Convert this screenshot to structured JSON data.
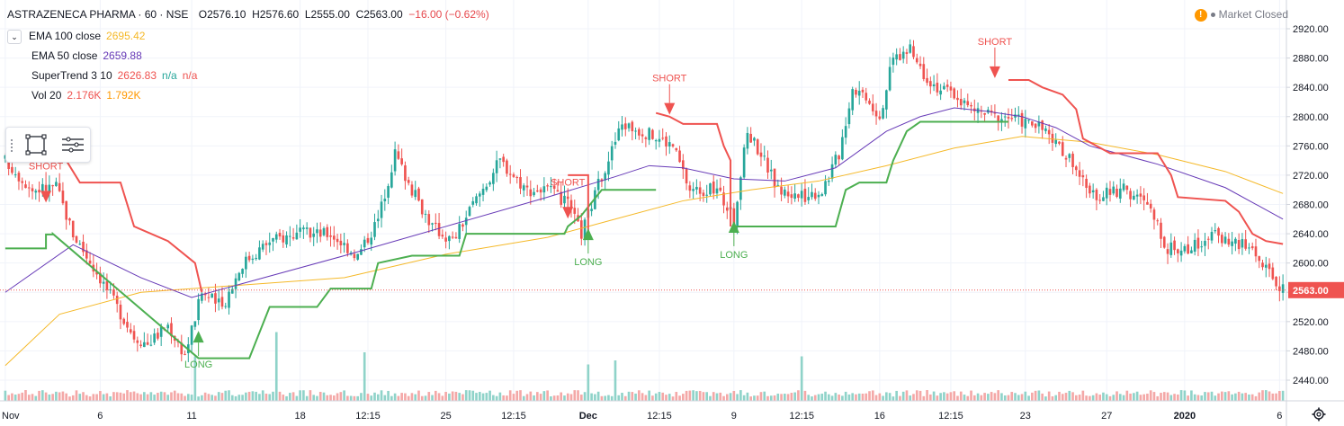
{
  "header": {
    "symbol": "ASTRAZENECA PHARMA · 60 · NSE",
    "open": "O2576.10",
    "high": "H2576.60",
    "low": "L2555.00",
    "close": "C2563.00",
    "change": "−16.00 (−0.62%)"
  },
  "market_status": "Market Closed",
  "legend": [
    {
      "name": "EMA 100 close",
      "value": "2695.42",
      "color": "#f5b929"
    },
    {
      "name": "EMA 50 close",
      "value": "2659.88",
      "color": "#673ab7"
    },
    {
      "name": "SuperTrend 3 10",
      "value": "2626.83",
      "extra1": "n/a",
      "extra2": "n/a",
      "color": "#ef5350",
      "color1": "#26a69a",
      "color2": "#ef5350"
    },
    {
      "name": "Vol 20",
      "value": "2.176K",
      "extra1": "1.792K",
      "color": "#ef5350",
      "color1": "#ff9800"
    }
  ],
  "icons": {
    "collapse": "chevron-down-icon",
    "rect": "rectangle-icon",
    "menu": "hamburger-icon",
    "settings": "gear-icon",
    "warning": "warning-icon"
  },
  "chart_data": {
    "type": "candlestick",
    "ylim": [
      2420,
      2940
    ],
    "y_ticks": [
      2440,
      2480,
      2520,
      2560,
      2600,
      2640,
      2680,
      2720,
      2760,
      2800,
      2840,
      2880,
      2920
    ],
    "y_tick_labels": [
      "2440.00",
      "2480.00",
      "2520.00",
      "2560.00",
      "2600.00",
      "2640.00",
      "2680.00",
      "2720.00",
      "2760.00",
      "2800.00",
      "2840.00",
      "2880.00",
      "2920.00"
    ],
    "x_labels": [
      "Nov",
      "6",
      "11",
      "18",
      "12:15",
      "25",
      "12:15",
      "Dec",
      "12:15",
      "9",
      "12:15",
      "16",
      "12:15",
      "23",
      "27",
      "2020",
      "6"
    ],
    "x_label_bars": [
      0,
      28,
      55,
      87,
      107,
      130,
      150,
      172,
      193,
      215,
      235,
      258,
      279,
      301,
      325,
      348,
      376
    ],
    "bar_count": 378,
    "last_price": 2563.0,
    "last_price_label": "2563.00",
    "close_path": [
      [
        0,
        2740
      ],
      [
        8,
        2700
      ],
      [
        15,
        2705
      ],
      [
        20,
        2640
      ],
      [
        28,
        2580
      ],
      [
        38,
        2500
      ],
      [
        42,
        2490
      ],
      [
        48,
        2515
      ],
      [
        53,
        2475
      ],
      [
        58,
        2560
      ],
      [
        64,
        2540
      ],
      [
        70,
        2600
      ],
      [
        78,
        2630
      ],
      [
        86,
        2640
      ],
      [
        96,
        2640
      ],
      [
        104,
        2610
      ],
      [
        110,
        2660
      ],
      [
        115,
        2750
      ],
      [
        120,
        2700
      ],
      [
        126,
        2650
      ],
      [
        132,
        2630
      ],
      [
        138,
        2680
      ],
      [
        146,
        2740
      ],
      [
        154,
        2700
      ],
      [
        160,
        2700
      ],
      [
        166,
        2680
      ],
      [
        170,
        2640
      ],
      [
        176,
        2720
      ],
      [
        182,
        2790
      ],
      [
        188,
        2780
      ],
      [
        193,
        2770
      ],
      [
        197,
        2760
      ],
      [
        202,
        2700
      ],
      [
        210,
        2700
      ],
      [
        215,
        2660
      ],
      [
        219,
        2780
      ],
      [
        223,
        2750
      ],
      [
        228,
        2700
      ],
      [
        235,
        2690
      ],
      [
        241,
        2700
      ],
      [
        246,
        2750
      ],
      [
        250,
        2840
      ],
      [
        254,
        2830
      ],
      [
        258,
        2800
      ],
      [
        262,
        2880
      ],
      [
        267,
        2890
      ],
      [
        271,
        2860
      ],
      [
        275,
        2840
      ],
      [
        280,
        2830
      ],
      [
        285,
        2810
      ],
      [
        292,
        2800
      ],
      [
        296,
        2800
      ],
      [
        303,
        2790
      ],
      [
        307,
        2780
      ],
      [
        310,
        2760
      ],
      [
        315,
        2740
      ],
      [
        320,
        2690
      ],
      [
        330,
        2700
      ],
      [
        337,
        2680
      ],
      [
        343,
        2620
      ],
      [
        350,
        2620
      ],
      [
        356,
        2640
      ],
      [
        362,
        2630
      ],
      [
        368,
        2620
      ],
      [
        372,
        2590
      ],
      [
        377,
        2563
      ]
    ],
    "ema100": [
      [
        0,
        2460
      ],
      [
        16,
        2530
      ],
      [
        40,
        2560
      ],
      [
        70,
        2570
      ],
      [
        100,
        2580
      ],
      [
        130,
        2612
      ],
      [
        160,
        2635
      ],
      [
        180,
        2660
      ],
      [
        200,
        2685
      ],
      [
        220,
        2700
      ],
      [
        240,
        2712
      ],
      [
        260,
        2733
      ],
      [
        280,
        2757
      ],
      [
        300,
        2773
      ],
      [
        320,
        2765
      ],
      [
        340,
        2748
      ],
      [
        360,
        2725
      ],
      [
        377,
        2695
      ]
    ],
    "ema50": [
      [
        0,
        2560
      ],
      [
        20,
        2625
      ],
      [
        40,
        2580
      ],
      [
        55,
        2553
      ],
      [
        70,
        2572
      ],
      [
        100,
        2610
      ],
      [
        130,
        2650
      ],
      [
        160,
        2690
      ],
      [
        180,
        2718
      ],
      [
        190,
        2733
      ],
      [
        200,
        2730
      ],
      [
        215,
        2715
      ],
      [
        230,
        2712
      ],
      [
        245,
        2730
      ],
      [
        260,
        2780
      ],
      [
        270,
        2800
      ],
      [
        280,
        2812
      ],
      [
        290,
        2807
      ],
      [
        300,
        2800
      ],
      [
        310,
        2785
      ],
      [
        320,
        2760
      ],
      [
        340,
        2735
      ],
      [
        360,
        2703
      ],
      [
        377,
        2660
      ]
    ],
    "supertrend_up": [
      [
        0,
        2620
      ],
      [
        12,
        2620
      ],
      [
        12,
        2639
      ],
      [
        14,
        2639
      ],
      [
        14,
        2640
      ],
      [
        57,
        2470
      ],
      [
        72,
        2470
      ],
      [
        78,
        2540
      ],
      [
        92,
        2540
      ],
      [
        96,
        2565
      ],
      [
        108,
        2565
      ],
      [
        110,
        2600
      ],
      [
        120,
        2610
      ],
      [
        134,
        2610
      ],
      [
        136,
        2640
      ],
      [
        165,
        2640
      ],
      [
        166,
        2650
      ],
      [
        170,
        2665
      ],
      [
        176,
        2700
      ],
      [
        192,
        2700
      ]
    ],
    "supertrend_up2": [
      [
        215,
        2650
      ],
      [
        245,
        2650
      ],
      [
        248,
        2700
      ],
      [
        252,
        2710
      ],
      [
        260,
        2710
      ],
      [
        262,
        2740
      ],
      [
        266,
        2780
      ],
      [
        270,
        2793
      ],
      [
        296,
        2793
      ]
    ],
    "supertrend_dn": [
      [
        0,
        2750
      ],
      [
        12,
        2740
      ],
      [
        18,
        2740
      ],
      [
        22,
        2710
      ],
      [
        34,
        2710
      ],
      [
        38,
        2650
      ],
      [
        48,
        2630
      ],
      [
        56,
        2600
      ],
      [
        58,
        2560
      ]
    ],
    "supertrend_dn2": [
      [
        166,
        2720
      ],
      [
        172,
        2720
      ],
      [
        172,
        2640
      ]
    ],
    "supertrend_dn3": [
      [
        192,
        2805
      ],
      [
        196,
        2800
      ],
      [
        200,
        2790
      ],
      [
        210,
        2790
      ],
      [
        212,
        2760
      ],
      [
        214,
        2740
      ],
      [
        214,
        2650
      ]
    ],
    "supertrend_dn4": [
      [
        296,
        2850
      ],
      [
        302,
        2850
      ],
      [
        306,
        2840
      ],
      [
        312,
        2830
      ],
      [
        316,
        2810
      ],
      [
        318,
        2770
      ],
      [
        326,
        2750
      ],
      [
        340,
        2750
      ],
      [
        344,
        2720
      ],
      [
        346,
        2690
      ],
      [
        360,
        2685
      ],
      [
        364,
        2670
      ],
      [
        368,
        2640
      ],
      [
        372,
        2630
      ],
      [
        377,
        2626
      ]
    ],
    "signals": [
      {
        "label": "SHORT",
        "type": "short",
        "bar": 12,
        "price": 2690
      },
      {
        "label": "LONG",
        "type": "long",
        "bar": 57,
        "price": 2500
      },
      {
        "label": "SHORT",
        "type": "short",
        "bar": 166,
        "price": 2668
      },
      {
        "label": "LONG",
        "type": "long",
        "bar": 172,
        "price": 2640
      },
      {
        "label": "SHORT",
        "type": "short",
        "bar": 196,
        "price": 2810
      },
      {
        "label": "LONG",
        "type": "long",
        "bar": 215,
        "price": 2650
      },
      {
        "label": "SHORT",
        "type": "short",
        "bar": 292,
        "price": 2860
      }
    ],
    "volume_spikes": [
      [
        56,
        0.55
      ],
      [
        80,
        0.85
      ],
      [
        106,
        0.6
      ],
      [
        172,
        0.45
      ],
      [
        180,
        0.5
      ],
      [
        235,
        0.55
      ]
    ]
  }
}
